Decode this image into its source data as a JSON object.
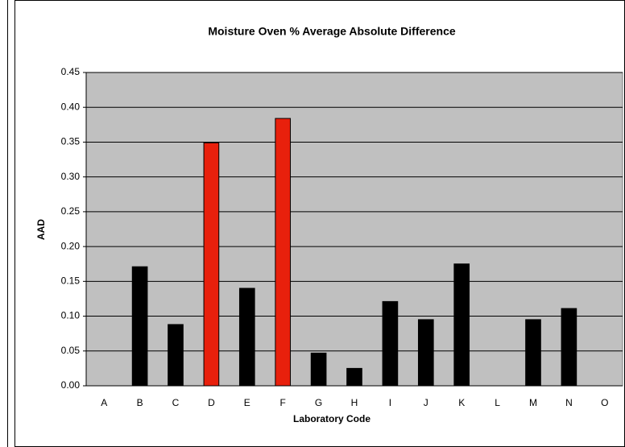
{
  "chart_data": {
    "type": "bar",
    "title": "Moisture Oven % Average Absolute Difference",
    "x_label": "Laboratory Code",
    "y_label": "AAD",
    "categories": [
      "A",
      "B",
      "C",
      "D",
      "E",
      "F",
      "G",
      "H",
      "I",
      "J",
      "K",
      "L",
      "M",
      "N",
      "O"
    ],
    "values": [
      null,
      0.171,
      0.088,
      0.349,
      0.14,
      0.384,
      0.047,
      0.025,
      0.121,
      0.095,
      0.175,
      null,
      0.095,
      0.111,
      null
    ],
    "colors": [
      "#000000",
      "#000000",
      "#000000",
      "#e8200c",
      "#000000",
      "#e8200c",
      "#000000",
      "#000000",
      "#000000",
      "#000000",
      "#000000",
      "#000000",
      "#000000",
      "#000000",
      "#000000"
    ],
    "ylim": [
      0,
      0.45
    ],
    "yticks": [
      {
        "value": 0,
        "label": "0.00"
      },
      0.05,
      {
        "value": 0.1,
        "label": "0.10"
      },
      0.15,
      {
        "value": 0.2,
        "label": "0.20"
      },
      0.25,
      {
        "value": 0.3,
        "label": "0.30"
      },
      0.35,
      {
        "value": 0.4,
        "label": "0.40"
      },
      0.45
    ],
    "grid": true,
    "plot_background": "#c0c0c0"
  }
}
